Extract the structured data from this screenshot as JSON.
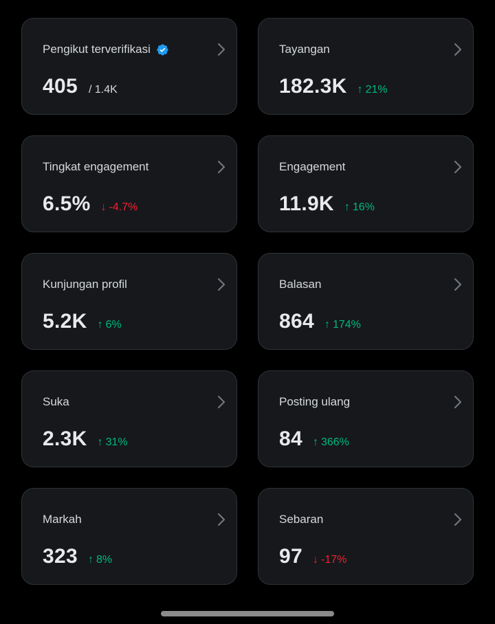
{
  "colors": {
    "background": "#000000",
    "card": "#16181c",
    "card_border": "#2f3336",
    "positive": "#00ba7c",
    "negative": "#f4212e",
    "verified": "#1d9bf0"
  },
  "cards": [
    {
      "title": "Pengikut terverifikasi",
      "value": "405",
      "sub": "/ 1.4K",
      "verified_icon": "verified-badge-icon"
    },
    {
      "title": "Tayangan",
      "value": "182.3K",
      "delta": "21%",
      "direction": "up"
    },
    {
      "title": "Tingkat engagement",
      "value": "6.5%",
      "delta": "-4.7%",
      "direction": "down"
    },
    {
      "title": "Engagement",
      "value": "11.9K",
      "delta": "16%",
      "direction": "up"
    },
    {
      "title": "Kunjungan profil",
      "value": "5.2K",
      "delta": "6%",
      "direction": "up"
    },
    {
      "title": "Balasan",
      "value": "864",
      "delta": "174%",
      "direction": "up"
    },
    {
      "title": "Suka",
      "value": "2.3K",
      "delta": "31%",
      "direction": "up"
    },
    {
      "title": "Posting ulang",
      "value": "84",
      "delta": "366%",
      "direction": "up"
    },
    {
      "title": "Markah",
      "value": "323",
      "delta": "8%",
      "direction": "up"
    },
    {
      "title": "Sebaran",
      "value": "97",
      "delta": "-17%",
      "direction": "down"
    }
  ],
  "arrows": {
    "up": "↑",
    "down": "↓"
  }
}
